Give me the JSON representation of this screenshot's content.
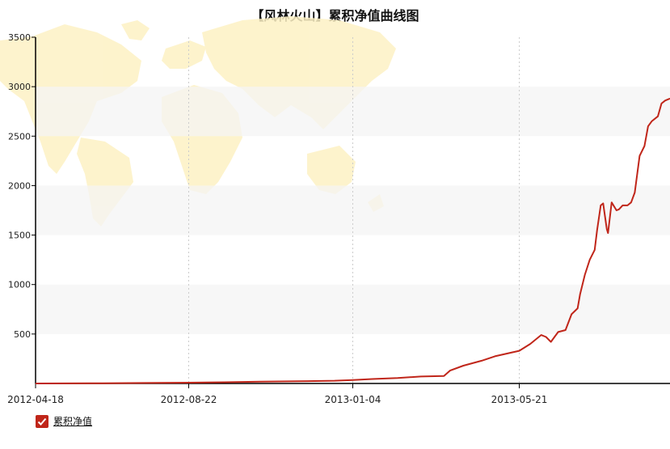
{
  "chart_data": {
    "type": "line",
    "title": "【风林火山】累积净值曲线图",
    "xlabel": "",
    "ylabel": "",
    "x_ticks": [
      "2012-04-18",
      "2012-08-22",
      "2013-01-04",
      "2013-05-21"
    ],
    "y_ticks": [
      500,
      1000,
      1500,
      2000,
      2500,
      3000,
      3500
    ],
    "ylim": [
      0,
      3500
    ],
    "xlim": [
      "2012-04-18",
      "2013-09-22"
    ],
    "grid": "alternating horizontal bands, dotted vertical lines at x ticks",
    "legend_position": "bottom-left",
    "series": [
      {
        "name": "累积净值",
        "color": "#c0261a",
        "x": [
          "2012-04-18",
          "2012-06-01",
          "2012-07-15",
          "2012-08-22",
          "2012-09-20",
          "2012-10-20",
          "2012-11-20",
          "2012-12-20",
          "2013-01-04",
          "2013-01-20",
          "2013-02-10",
          "2013-03-01",
          "2013-03-20",
          "2013-03-25",
          "2013-04-05",
          "2013-04-20",
          "2013-05-01",
          "2013-05-21",
          "2013-05-30",
          "2013-06-08",
          "2013-06-12",
          "2013-06-16",
          "2013-06-22",
          "2013-06-28",
          "2013-07-03",
          "2013-07-08",
          "2013-07-10",
          "2013-07-14",
          "2013-07-18",
          "2013-07-22",
          "2013-07-24",
          "2013-07-27",
          "2013-07-29",
          "2013-08-01",
          "2013-08-02",
          "2013-08-05",
          "2013-08-09",
          "2013-08-11",
          "2013-08-14",
          "2013-08-18",
          "2013-08-21",
          "2013-08-24",
          "2013-08-28",
          "2013-09-01",
          "2013-09-04",
          "2013-09-07",
          "2013-09-12",
          "2013-09-15",
          "2013-09-18",
          "2013-09-22"
        ],
        "values": [
          0,
          2,
          5,
          8,
          12,
          18,
          22,
          28,
          35,
          45,
          55,
          70,
          75,
          130,
          180,
          230,
          275,
          330,
          400,
          490,
          470,
          420,
          520,
          540,
          700,
          760,
          900,
          1100,
          1250,
          1350,
          1550,
          1800,
          1820,
          1560,
          1520,
          1830,
          1750,
          1760,
          1800,
          1800,
          1830,
          1930,
          2300,
          2400,
          2600,
          2650,
          2700,
          2830,
          2860,
          2880
        ]
      }
    ]
  }
}
